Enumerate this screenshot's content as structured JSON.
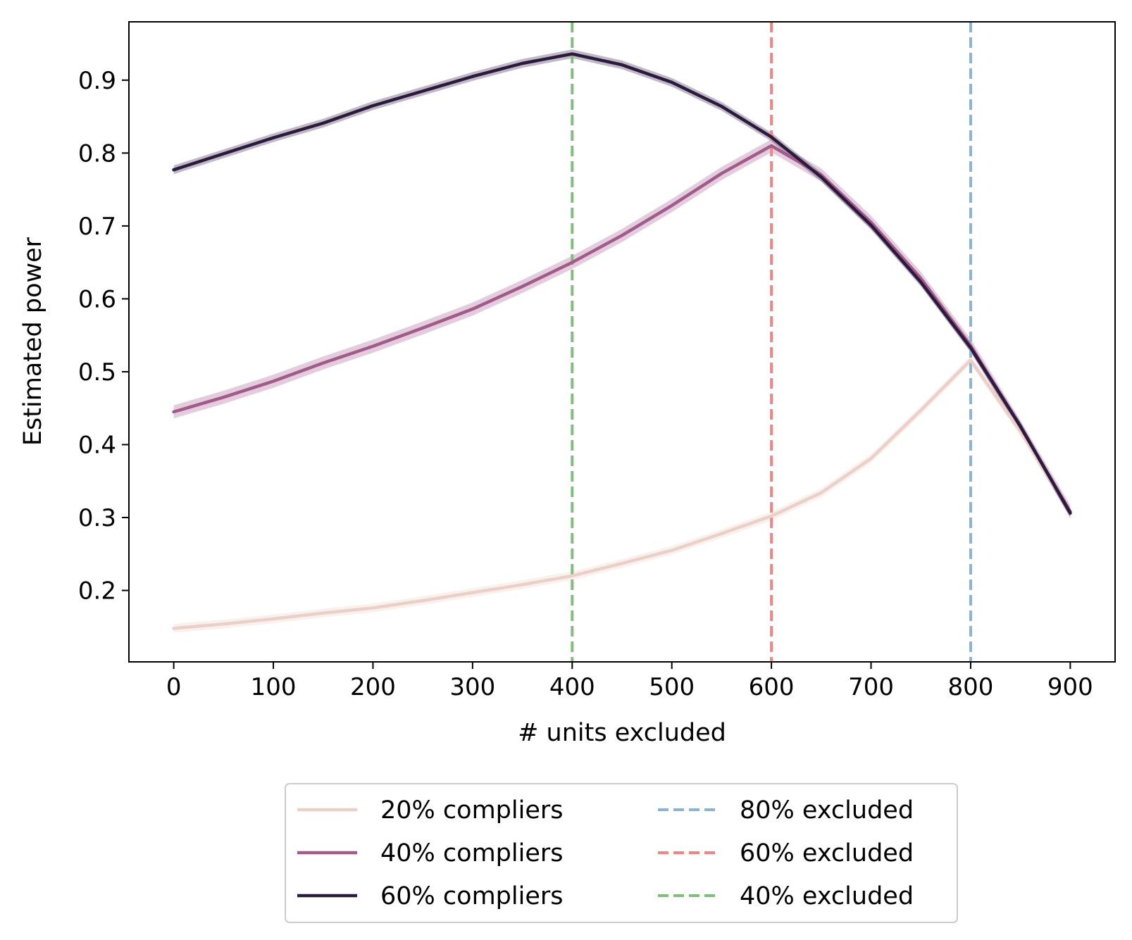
{
  "chart_data": {
    "type": "line",
    "title": "",
    "xlabel": "# units excluded",
    "ylabel": "Estimated power",
    "xlim": [
      -45,
      945
    ],
    "ylim": [
      0.102,
      0.98
    ],
    "xticks": [
      0,
      100,
      200,
      300,
      400,
      500,
      600,
      700,
      800,
      900
    ],
    "yticks": [
      0.2,
      0.3,
      0.4,
      0.5,
      0.6,
      0.7,
      0.8,
      0.9
    ],
    "grid": false,
    "legend_position": "bottom-center",
    "x": [
      0,
      50,
      100,
      150,
      200,
      250,
      300,
      350,
      400,
      450,
      500,
      550,
      600,
      650,
      700,
      750,
      800,
      850,
      900
    ],
    "series": [
      {
        "name": "20% compliers",
        "color": "#ecd0c8",
        "values": [
          0.148,
          0.154,
          0.161,
          0.169,
          0.176,
          0.186,
          0.197,
          0.208,
          0.22,
          0.237,
          0.255,
          0.278,
          0.302,
          0.334,
          0.381,
          0.447,
          0.516,
          0.418,
          0.308
        ],
        "band": 0.006
      },
      {
        "name": "40% compliers",
        "color": "#a25a8b",
        "values": [
          0.445,
          0.465,
          0.487,
          0.512,
          0.535,
          0.56,
          0.586,
          0.617,
          0.65,
          0.687,
          0.728,
          0.772,
          0.81,
          0.77,
          0.705,
          0.628,
          0.536,
          0.424,
          0.308
        ],
        "band": 0.009
      },
      {
        "name": "60% compliers",
        "color": "#2b1a3e",
        "values": [
          0.777,
          0.799,
          0.821,
          0.841,
          0.865,
          0.885,
          0.905,
          0.923,
          0.936,
          0.921,
          0.897,
          0.864,
          0.822,
          0.767,
          0.701,
          0.623,
          0.533,
          0.425,
          0.306
        ],
        "band": 0.006
      }
    ],
    "vlines": [
      {
        "name": "80% excluded",
        "x": 800,
        "color": "#8ab3d5"
      },
      {
        "name": "60% excluded",
        "x": 600,
        "color": "#f28483"
      },
      {
        "name": "40% excluded",
        "x": 400,
        "color": "#7fbf7b"
      }
    ]
  }
}
